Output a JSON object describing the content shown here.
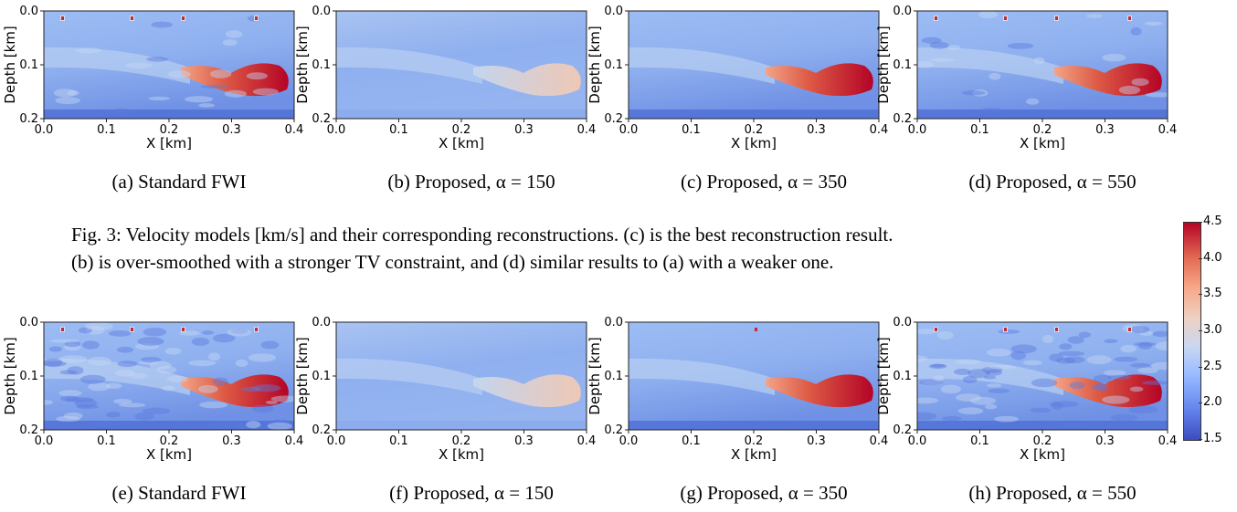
{
  "figure3": {
    "panels": [
      {
        "caption": "(a) Standard FWI",
        "variant": "raw"
      },
      {
        "caption": "(b) Proposed, α = 150",
        "variant": "smooth"
      },
      {
        "caption": "(c) Proposed, α = 350",
        "variant": "mid"
      },
      {
        "caption": "(d) Proposed, α = 550",
        "variant": "raw"
      }
    ],
    "caption_lines": [
      "Fig. 3: Velocity models [km/s] and their corresponding reconstructions. (c) is the best reconstruction result.",
      "(b) is over-smoothed with a stronger TV constraint, and (d) similar results to (a) with a weaker one."
    ]
  },
  "figure4": {
    "panels": [
      {
        "caption": "(e) Standard FWI",
        "variant": "noisy"
      },
      {
        "caption": "(f) Proposed, α = 150",
        "variant": "smooth"
      },
      {
        "caption": "(g) Proposed, α = 350",
        "variant": "mid"
      },
      {
        "caption": "(h) Proposed, α = 550",
        "variant": "noisy"
      }
    ]
  },
  "axes": {
    "xlabel": "X [km]",
    "ylabel": "Depth [km]",
    "xticks": [
      "0.0",
      "0.1",
      "0.2",
      "0.3",
      "0.4"
    ],
    "yticks": [
      "0.0",
      "0.1",
      "0.2"
    ]
  },
  "colorbar": {
    "ticks": [
      "4.5",
      "4.0",
      "3.5",
      "3.0",
      "2.5",
      "2.0",
      "1.5"
    ],
    "range": [
      1.5,
      4.5
    ],
    "colormap": "coolwarm",
    "low_color": "#3b4cc0",
    "high_color": "#b40426"
  }
}
